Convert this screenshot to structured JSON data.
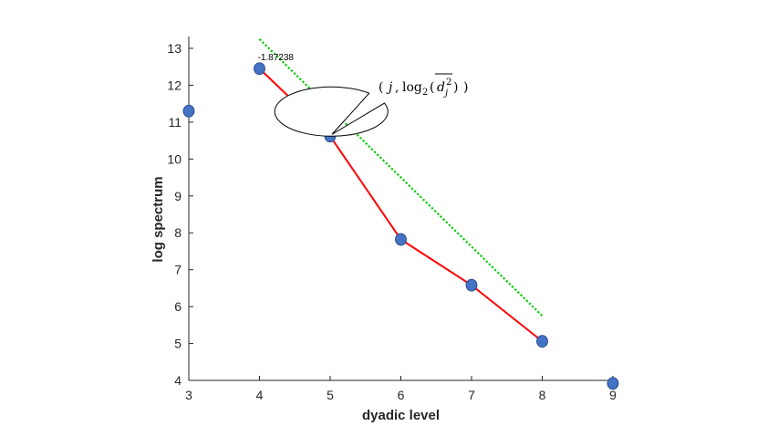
{
  "chart_data": {
    "type": "line",
    "xlabel": "dyadic level",
    "ylabel": "log spectrum",
    "xlim": [
      3,
      9
    ],
    "ylim": [
      4,
      13
    ],
    "xticks": [
      "3",
      "4",
      "5",
      "6",
      "7",
      "8",
      "9"
    ],
    "yticks": [
      "4",
      "5",
      "6",
      "7",
      "8",
      "9",
      "10",
      "11",
      "12",
      "13"
    ],
    "grid": false,
    "legend": "none",
    "points": {
      "x": [
        3,
        4,
        5,
        6,
        7,
        8,
        9
      ],
      "y": [
        11.3,
        12.45,
        10.62,
        7.82,
        6.58,
        5.06,
        3.92
      ],
      "color": "#4472C4"
    },
    "series": [
      {
        "style": "solid",
        "color": "#FF0000",
        "x": [
          4,
          5,
          6,
          7,
          8
        ],
        "y": [
          12.45,
          10.62,
          7.82,
          6.58,
          5.06
        ]
      },
      {
        "style": "dotted",
        "color": "#00CC00",
        "x": [
          4,
          8
        ],
        "y": [
          13.25,
          5.75
        ]
      }
    ],
    "annotations": {
      "slope_label": "-1.87238",
      "slope_label_at": {
        "x": 4,
        "y": 12.45
      },
      "callout": {
        "j": "j",
        "log": "log",
        "base": "2",
        "d": "d",
        "sub": "j",
        "sup": "2",
        "points_to": {
          "x": 5,
          "y": 10.62
        }
      }
    }
  }
}
